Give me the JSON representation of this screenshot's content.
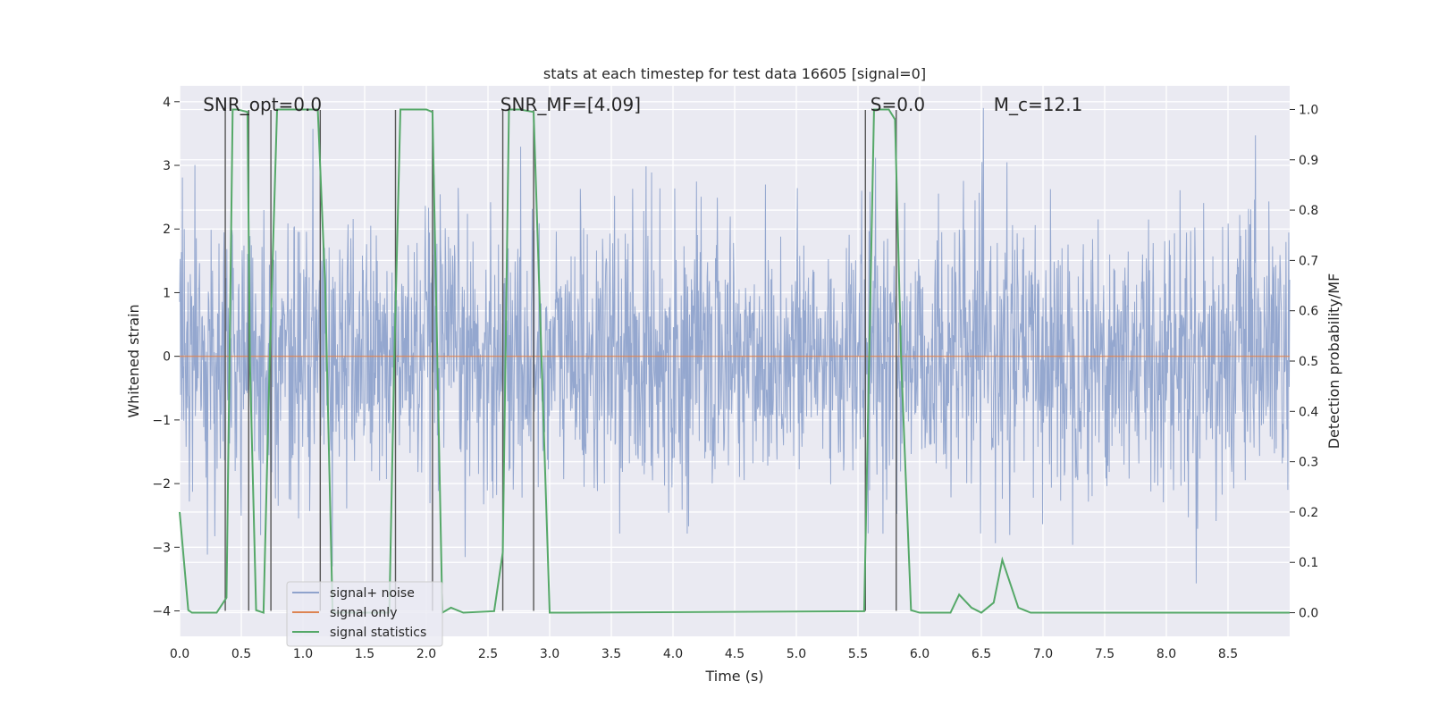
{
  "chart_data": {
    "type": "line",
    "title": "stats at each timestep for test data 16605 [signal=0]",
    "xlabel": "Time (s)",
    "ylabel": "Whitened strain",
    "y2label": "Detection probability/MF",
    "xlim": [
      0,
      9.0
    ],
    "ylim": [
      -4.4,
      4.25
    ],
    "y2lim": [
      -0.047,
      1.047
    ],
    "x_ticks": [
      0.0,
      0.5,
      1.0,
      1.5,
      2.0,
      2.5,
      3.0,
      3.5,
      4.0,
      4.5,
      5.0,
      5.5,
      6.0,
      6.5,
      7.0,
      7.5,
      8.0,
      8.5
    ],
    "x_tick_labels": [
      "0.0",
      "0.5",
      "1.0",
      "1.5",
      "2.0",
      "2.5",
      "3.0",
      "3.5",
      "4.0",
      "4.5",
      "5.0",
      "5.5",
      "6.0",
      "6.5",
      "7.0",
      "7.5",
      "8.0",
      "8.5"
    ],
    "y_ticks": [
      4,
      3,
      2,
      1,
      0,
      -1,
      -2,
      -3,
      -4
    ],
    "y_tick_labels": [
      "4",
      "3",
      "2",
      "1",
      "0",
      "−1",
      "−2",
      "−3",
      "−4"
    ],
    "y2_ticks": [
      1.0,
      0.9,
      0.8,
      0.7,
      0.6,
      0.5,
      0.4,
      0.3,
      0.2,
      0.1,
      0.0
    ],
    "y2_tick_labels": [
      "1.0",
      "0.9",
      "0.8",
      "0.7",
      "0.6",
      "0.5",
      "0.4",
      "0.3",
      "0.2",
      "0.1",
      "0.0"
    ],
    "grid": true,
    "legend_placement": "lower-left",
    "annotations": [
      {
        "text": "SNR_opt=0.0",
        "x": 0.19
      },
      {
        "text": "SNR_MF=[4.09]",
        "x": 2.6
      },
      {
        "text": "S=0.0",
        "x": 5.6
      },
      {
        "text": "M_c=12.1",
        "x": 6.6
      }
    ],
    "series": [
      {
        "name": "signal+ noise",
        "axis": "left",
        "color": "#8fa3cc",
        "description": "whitened noise, approx. std 1, range about -4 to 4",
        "envelope": {
          "t": [
            0,
            9.0
          ],
          "typical_amplitude": 2.0,
          "peak_amplitude": 3.9
        }
      },
      {
        "name": "signal only",
        "axis": "left",
        "color": "#dd8452",
        "x": [
          0,
          9.0
        ],
        "y": [
          0,
          0
        ]
      },
      {
        "name": "signal statistics",
        "axis": "right",
        "color": "#55a868",
        "x": [
          0.0,
          0.07,
          0.1,
          0.3,
          0.38,
          0.43,
          0.47,
          0.55,
          0.57,
          0.62,
          0.68,
          0.73,
          0.79,
          1.12,
          1.18,
          1.24,
          1.3,
          1.33,
          1.7,
          1.74,
          1.79,
          2.0,
          2.05,
          2.13,
          2.2,
          2.3,
          2.55,
          2.62,
          2.67,
          2.76,
          2.87,
          3.0,
          3.05,
          5.55,
          5.59,
          5.63,
          5.75,
          5.8,
          5.85,
          5.93,
          6.0,
          6.25,
          6.32,
          6.42,
          6.5,
          6.6,
          6.67,
          6.8,
          6.9,
          7.0,
          9.0
        ],
        "y": [
          0.2,
          0.005,
          0.0,
          0.0,
          0.03,
          1.0,
          1.0,
          0.995,
          0.5,
          0.005,
          0.0,
          0.5,
          1.0,
          1.0,
          0.65,
          0.0,
          0.0,
          0.0,
          0.0,
          0.5,
          1.0,
          1.0,
          0.995,
          0.0,
          0.01,
          0.0,
          0.003,
          0.12,
          1.0,
          1.0,
          0.995,
          0.0,
          0.0,
          0.003,
          0.5,
          1.0,
          1.0,
          0.98,
          0.5,
          0.005,
          0.0,
          0.0,
          0.036,
          0.01,
          0.0,
          0.02,
          0.105,
          0.01,
          0.0,
          0.0,
          0.0
        ]
      }
    ],
    "vertical_lines": [
      0.37,
      0.56,
      0.74,
      1.14,
      1.75,
      2.05,
      2.62,
      2.87,
      5.56,
      5.81
    ]
  }
}
